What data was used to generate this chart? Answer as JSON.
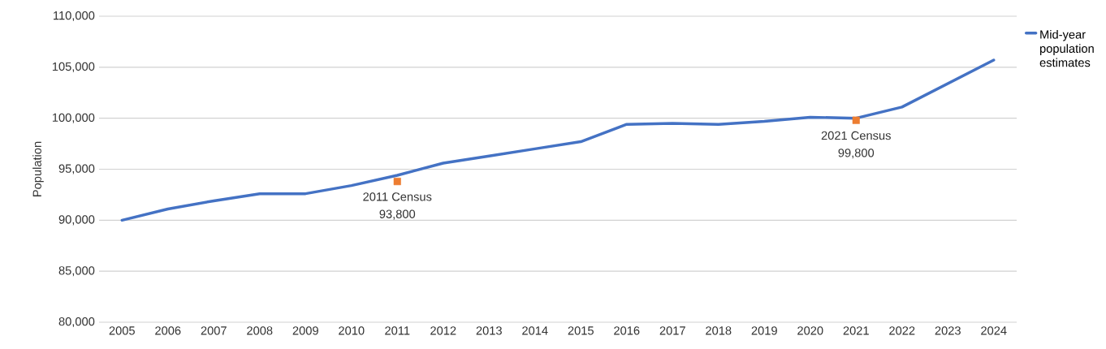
{
  "chart_data": {
    "type": "line",
    "ylabel": "Population",
    "categories": [
      "2005",
      "2006",
      "2007",
      "2008",
      "2009",
      "2010",
      "2011",
      "2012",
      "2013",
      "2014",
      "2015",
      "2016",
      "2017",
      "2018",
      "2019",
      "2020",
      "2021",
      "2022",
      "2023",
      "2024"
    ],
    "series": [
      {
        "name": "Mid-year population estimates",
        "color": "#4472c4",
        "marker": "none",
        "values": [
          90000,
          91100,
          91900,
          92600,
          92600,
          93400,
          94400,
          95600,
          96300,
          97000,
          97700,
          99400,
          99500,
          99400,
          99700,
          100100,
          100000,
          101100,
          103400,
          105700
        ]
      },
      {
        "type": "scatter",
        "color": "#ed7d31",
        "marker": "square",
        "values": [
          null,
          null,
          null,
          null,
          null,
          null,
          93800,
          null,
          null,
          null,
          null,
          null,
          null,
          null,
          null,
          null,
          99800,
          null,
          null,
          null
        ],
        "value_labels": [
          null,
          null,
          null,
          null,
          null,
          null,
          "93,800",
          null,
          null,
          null,
          null,
          null,
          null,
          null,
          null,
          null,
          "99,800",
          null,
          null,
          null
        ]
      }
    ],
    "annotations": [
      {
        "text": "2011 Census",
        "x": "2011",
        "y": 93800
      },
      {
        "text": "2021 Census",
        "x": "2021",
        "y": 99800
      }
    ],
    "ylim": [
      80000,
      110000
    ],
    "yticks": [
      {
        "value": 80000,
        "label": "80,000"
      },
      {
        "value": 85000,
        "label": "85,000"
      },
      {
        "value": 90000,
        "label": "90,000"
      },
      {
        "value": 95000,
        "label": "95,000"
      },
      {
        "value": 100000,
        "label": "100,000"
      },
      {
        "value": 105000,
        "label": "105,000"
      },
      {
        "value": 110000,
        "label": "110,000"
      }
    ],
    "grid": "y",
    "legend": "right"
  }
}
